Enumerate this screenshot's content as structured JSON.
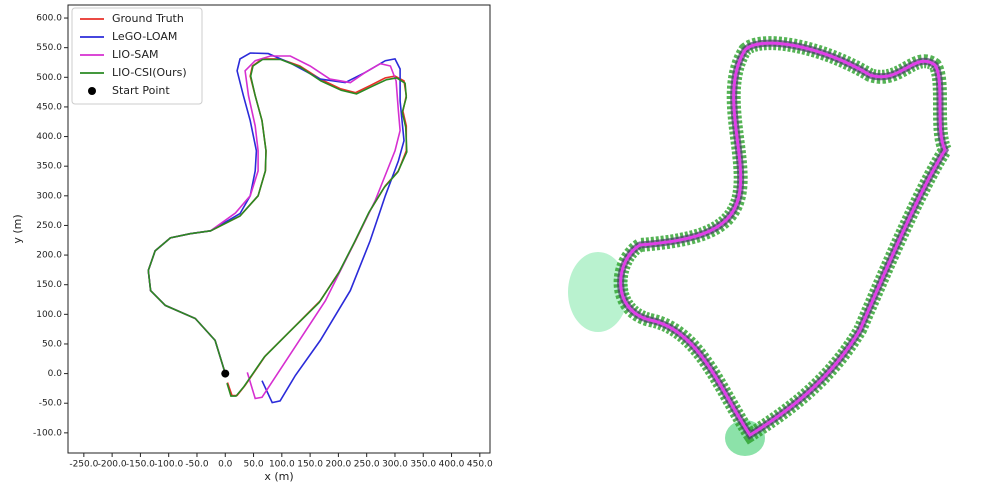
{
  "chart_data": {
    "type": "line",
    "xlabel": "x (m)",
    "ylabel": "y (m)",
    "xlim": [
      -278,
      468
    ],
    "ylim": [
      -134,
      622
    ],
    "xticks": [
      {
        "value": -250,
        "label": "-250.0"
      },
      {
        "value": -200,
        "label": "-200.0"
      },
      {
        "value": -150,
        "label": "-150.0"
      },
      {
        "value": -100,
        "label": "-100.0"
      },
      {
        "value": -50,
        "label": "-50.0"
      },
      {
        "value": 0,
        "label": "0.0"
      },
      {
        "value": 50,
        "label": "50.0"
      },
      {
        "value": 100,
        "label": "100.0"
      },
      {
        "value": 150,
        "label": "150.0"
      },
      {
        "value": 200,
        "label": "200.0"
      },
      {
        "value": 250,
        "label": "250.0"
      },
      {
        "value": 300,
        "label": "300.0"
      },
      {
        "value": 350,
        "label": "350.0"
      },
      {
        "value": 400,
        "label": "400.0"
      },
      {
        "value": 450,
        "label": "450.0"
      }
    ],
    "yticks": [
      {
        "value": -100,
        "label": "-100.0"
      },
      {
        "value": -50,
        "label": "-50.0"
      },
      {
        "value": 0,
        "label": "0.0"
      },
      {
        "value": 50,
        "label": "50.0"
      },
      {
        "value": 100,
        "label": "100.0"
      },
      {
        "value": 150,
        "label": "150.0"
      },
      {
        "value": 200,
        "label": "200.0"
      },
      {
        "value": 250,
        "label": "250.0"
      },
      {
        "value": 300,
        "label": "300.0"
      },
      {
        "value": 350,
        "label": "350.0"
      },
      {
        "value": 400,
        "label": "400.0"
      },
      {
        "value": 450,
        "label": "450.0"
      },
      {
        "value": 500,
        "label": "500.0"
      },
      {
        "value": 550,
        "label": "550.0"
      },
      {
        "value": 600,
        "label": "600.0"
      }
    ],
    "legend": "upper left",
    "series": [
      {
        "name": "Ground Truth",
        "color": "#e8302a",
        "type": "line",
        "x": [
          0,
          -18,
          -53,
          -106,
          -132,
          -136,
          -124,
          -97,
          -62,
          -26,
          26,
          58,
          71,
          72,
          65,
          53,
          44,
          48,
          65,
          97,
          132,
          168,
          203,
          230,
          256,
          283,
          300,
          316,
          320,
          314,
          320,
          320,
          306,
          283,
          256,
          230,
          203,
          168,
          115,
          71,
          35,
          21,
          12,
          4
        ],
        "y": [
          0,
          56,
          93,
          115,
          140,
          174,
          207,
          229,
          236,
          241,
          266,
          300,
          342,
          376,
          427,
          469,
          502,
          519,
          531,
          531,
          519,
          497,
          481,
          474,
          486,
          499,
          502,
          494,
          469,
          443,
          418,
          376,
          342,
          317,
          275,
          224,
          174,
          123,
          72,
          30,
          -20,
          -37,
          -37,
          -15
        ]
      },
      {
        "name": "LeGO-LOAM",
        "color": "#2b2bd9",
        "type": "line",
        "x": [
          0,
          -18,
          -53,
          -106,
          -132,
          -136,
          -124,
          -97,
          -62,
          -26,
          26,
          44,
          53,
          55,
          44,
          32,
          21,
          26,
          44,
          76,
          115,
          168,
          212,
          247,
          283,
          300,
          309,
          309,
          316,
          306,
          283,
          256,
          221,
          168,
          124,
          97,
          83,
          65
        ],
        "y": [
          0,
          56,
          93,
          115,
          140,
          174,
          207,
          229,
          236,
          241,
          270,
          300,
          342,
          376,
          427,
          469,
          511,
          531,
          541,
          540,
          524,
          497,
          491,
          508,
          528,
          531,
          514,
          460,
          393,
          359,
          300,
          224,
          140,
          56,
          -3,
          -46,
          -49,
          -12
        ]
      },
      {
        "name": "LIO-SAM",
        "color": "#d62fd0",
        "type": "line",
        "x": [
          0,
          -18,
          -53,
          -106,
          -132,
          -136,
          -124,
          -97,
          -62,
          -26,
          18,
          44,
          58,
          58,
          53,
          41,
          35,
          53,
          80,
          115,
          150,
          185,
          221,
          247,
          274,
          292,
          302,
          306,
          309,
          300,
          265,
          221,
          177,
          120,
          65,
          53,
          39
        ],
        "y": [
          0,
          56,
          93,
          115,
          140,
          174,
          207,
          229,
          236,
          241,
          271,
          300,
          342,
          376,
          418,
          469,
          511,
          528,
          536,
          536,
          519,
          497,
          491,
          508,
          523,
          519,
          494,
          443,
          410,
          376,
          292,
          207,
          123,
          40,
          -40,
          -42,
          2
        ]
      },
      {
        "name": "LIO-CSI(Ours)",
        "color": "#2a8a22",
        "type": "line",
        "x": [
          0,
          -18,
          -53,
          -106,
          -132,
          -136,
          -124,
          -97,
          -62,
          -26,
          26,
          58,
          71,
          72,
          65,
          53,
          45,
          49,
          66,
          98,
          133,
          169,
          205,
          232,
          258,
          285,
          303,
          318,
          320,
          313,
          319,
          321,
          305,
          281,
          254,
          228,
          201,
          166,
          113,
          69,
          33,
          19,
          10,
          3
        ],
        "y": [
          0,
          56,
          93,
          115,
          140,
          174,
          207,
          229,
          236,
          241,
          266,
          300,
          342,
          376,
          427,
          469,
          502,
          519,
          530,
          530,
          517,
          494,
          478,
          472,
          484,
          496,
          499,
          490,
          466,
          441,
          416,
          374,
          340,
          314,
          272,
          221,
          171,
          120,
          70,
          28,
          -22,
          -38,
          -38,
          -16
        ]
      },
      {
        "name": "Start Point",
        "color": "#000000",
        "type": "scatter",
        "x": [
          0
        ],
        "y": [
          0
        ]
      }
    ]
  }
}
